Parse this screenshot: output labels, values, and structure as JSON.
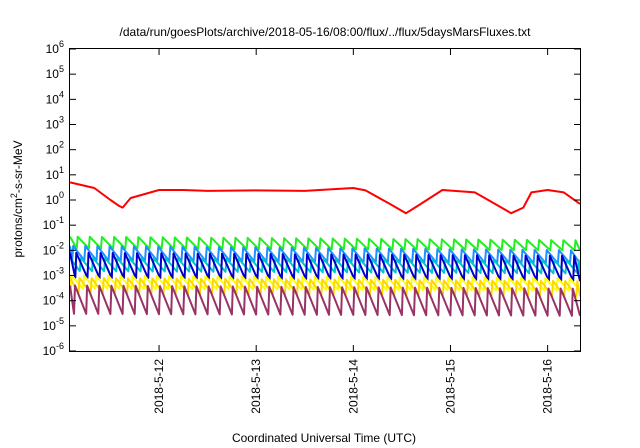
{
  "chart_data": {
    "type": "line",
    "title": "/data/run/goesPlots/archive/2018-05-16/08:00/flux/../flux/5daysMarsFluxes.txt",
    "xlabel": "Coordinated Universal Time (UTC)",
    "ylabel": "protons/cm²-s-sr-MeV",
    "yscale": "log",
    "ylim": [
      1e-06,
      1000000.0
    ],
    "xlim": [
      "2018-05-11 02:00",
      "2018-05-16 08:00"
    ],
    "x_ticks": [
      "2018-5-12",
      "2018-5-13",
      "2018-5-14",
      "2018-5-15",
      "2018-5-16"
    ],
    "y_ticks": [
      {
        "base": "10",
        "exp": "-6"
      },
      {
        "base": "10",
        "exp": "-5"
      },
      {
        "base": "10",
        "exp": "-4"
      },
      {
        "base": "10",
        "exp": "-3"
      },
      {
        "base": "10",
        "exp": "-2"
      },
      {
        "base": "10",
        "exp": "-1"
      },
      {
        "base": "10",
        "exp": "0"
      },
      {
        "base": "10",
        "exp": "1"
      },
      {
        "base": "10",
        "exp": "2"
      },
      {
        "base": "10",
        "exp": "3"
      },
      {
        "base": "10",
        "exp": "4"
      },
      {
        "base": "10",
        "exp": "5"
      },
      {
        "base": "10",
        "exp": "6"
      }
    ],
    "grid": false,
    "legend": "none",
    "series": [
      {
        "color": "#ff0000",
        "x": [
          "2018-05-11 02:00",
          "2018-05-11 08:00",
          "2018-05-11 12:00",
          "2018-05-11 14:00",
          "2018-05-11 15:00",
          "2018-05-11 17:00",
          "2018-05-12 00:00",
          "2018-05-12 06:00",
          "2018-05-12 12:00",
          "2018-05-13 00:00",
          "2018-05-13 12:00",
          "2018-05-14 00:00",
          "2018-05-14 03:00",
          "2018-05-14 09:00",
          "2018-05-14 13:00",
          "2018-05-14 16:00",
          "2018-05-14 22:00",
          "2018-05-15 06:00",
          "2018-05-15 11:00",
          "2018-05-15 15:00",
          "2018-05-15 18:00",
          "2018-05-15 20:00",
          "2018-05-16 00:00",
          "2018-05-16 04:00",
          "2018-05-16 08:00"
        ],
        "y": [
          5.0,
          3.0,
          1.0,
          0.6,
          0.5,
          1.2,
          2.5,
          2.5,
          2.3,
          2.4,
          2.3,
          3.0,
          2.4,
          0.7,
          0.3,
          0.6,
          2.5,
          2.0,
          0.7,
          0.3,
          0.5,
          2.0,
          2.5,
          2.0,
          0.7
        ]
      },
      {
        "color": "#22ee22",
        "x": [
          "2018-05-11 02:00",
          "2018-05-16 08:00"
        ],
        "y_high": [
          0.035,
          0.025
        ],
        "y_low": [
          0.012,
          0.01
        ],
        "cycle_hours": 3
      },
      {
        "color": "#1e90ff",
        "x": [
          "2018-05-11 02:00",
          "2018-05-16 08:00"
        ],
        "y_high": [
          0.015,
          0.01
        ],
        "y_low": [
          0.004,
          0.003
        ],
        "cycle_hours": 3
      },
      {
        "color": "#00c8c8",
        "x": [
          "2018-05-11 02:00",
          "2018-05-16 08:00"
        ],
        "y_high": [
          0.005,
          0.004
        ],
        "y_low": [
          0.0015,
          0.0012
        ],
        "cycle_hours": 3
      },
      {
        "color": "#0000cc",
        "x": [
          "2018-05-11 02:00",
          "2018-05-16 08:00"
        ],
        "y_high": [
          0.008,
          0.006
        ],
        "y_low": [
          0.0008,
          0.0006
        ],
        "cycle_hours": 3
      },
      {
        "color": "#ffff00",
        "x": [
          "2018-05-11 02:00",
          "2018-05-16 08:00"
        ],
        "y_high": [
          0.001,
          0.0008
        ],
        "y_low": [
          0.0003,
          0.00025
        ],
        "cycle_hours": 3
      },
      {
        "color": "#ffd700",
        "x": [
          "2018-05-11 02:00",
          "2018-05-16 08:00"
        ],
        "y_high": [
          0.0008,
          0.0006
        ],
        "y_low": [
          0.0002,
          0.00015
        ],
        "cycle_hours": 3
      },
      {
        "color": "#993366",
        "x": [
          "2018-05-11 02:00",
          "2018-05-16 08:00"
        ],
        "y_high": [
          0.0004,
          0.0003
        ],
        "y_low": [
          3e-05,
          2.5e-05
        ],
        "cycle_hours": 3
      }
    ]
  }
}
